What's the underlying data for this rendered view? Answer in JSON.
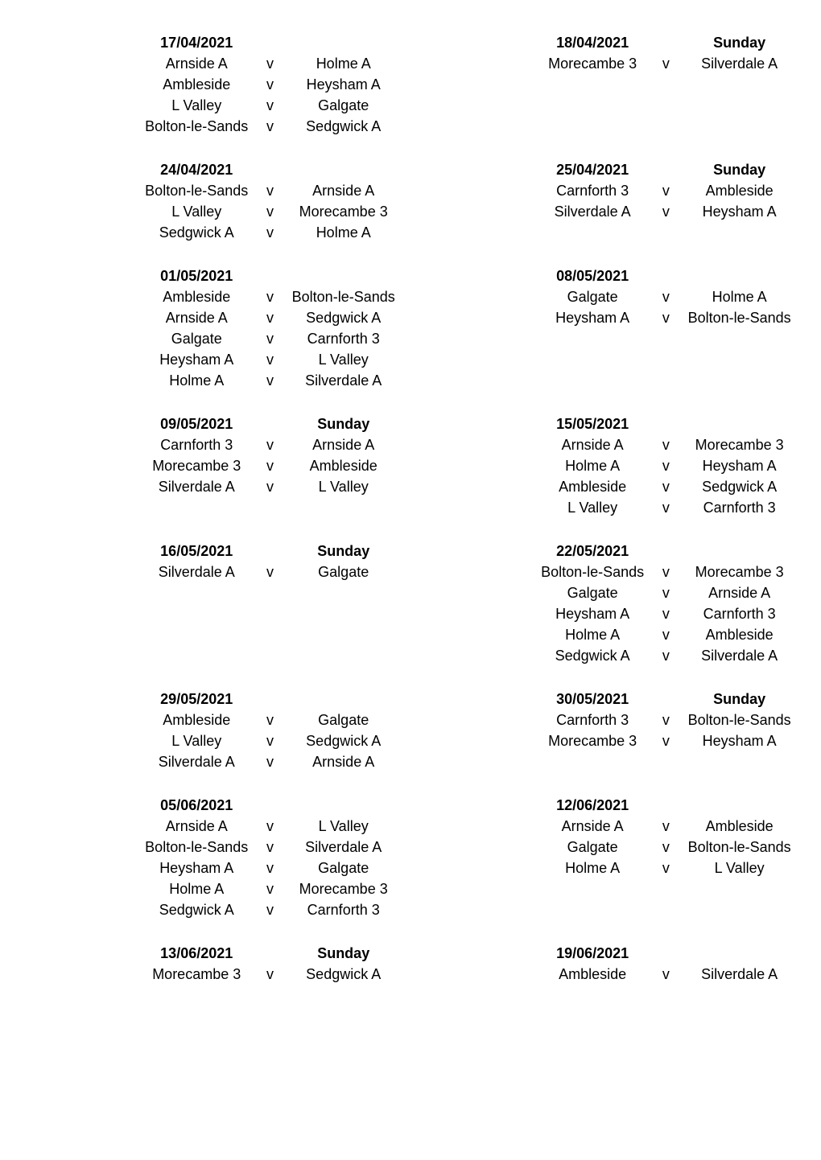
{
  "blocks": [
    {
      "left": {
        "date": "17/04/2021",
        "fixtures": [
          {
            "home": "Arnside A",
            "away": "Holme A"
          },
          {
            "home": "Ambleside",
            "away": "Heysham A"
          },
          {
            "home": "L Valley",
            "away": "Galgate"
          },
          {
            "home": "Bolton-le-Sands",
            "away": "Sedgwick A"
          }
        ]
      },
      "right": {
        "date": "18/04/2021",
        "rightHeader": "Sunday",
        "fixtures": [
          {
            "home": "Morecambe 3",
            "away": "Silverdale A"
          }
        ]
      }
    },
    {
      "left": {
        "date": "24/04/2021",
        "fixtures": [
          {
            "home": "Bolton-le-Sands",
            "away": "Arnside A"
          },
          {
            "home": "L Valley",
            "away": "Morecambe 3"
          },
          {
            "home": "Sedgwick A",
            "away": "Holme A"
          }
        ]
      },
      "right": {
        "date": "25/04/2021",
        "rightHeader": "Sunday",
        "fixtures": [
          {
            "home": "Carnforth 3",
            "away": "Ambleside"
          },
          {
            "home": "Silverdale A",
            "away": "Heysham A"
          }
        ]
      }
    },
    {
      "left": {
        "date": "01/05/2021",
        "fixtures": [
          {
            "home": "Ambleside",
            "away": "Bolton-le-Sands"
          },
          {
            "home": "Arnside A",
            "away": "Sedgwick A"
          },
          {
            "home": "Galgate",
            "away": "Carnforth 3"
          },
          {
            "home": "Heysham A",
            "away": "L Valley"
          },
          {
            "home": "Holme A",
            "away": "Silverdale A"
          }
        ]
      },
      "right": {
        "date": "08/05/2021",
        "fixtures": [
          {
            "home": "Galgate",
            "away": "Holme A"
          },
          {
            "home": "Heysham A",
            "away": "Bolton-le-Sands"
          }
        ]
      }
    },
    {
      "left": {
        "date": "09/05/2021",
        "awayHeader": "Sunday",
        "fixtures": [
          {
            "home": "Carnforth 3",
            "away": "Arnside A"
          },
          {
            "home": "Morecambe 3",
            "away": "Ambleside"
          },
          {
            "home": "Silverdale A",
            "away": "L Valley"
          }
        ]
      },
      "right": {
        "date": "15/05/2021",
        "fixtures": [
          {
            "home": "Arnside A",
            "away": "Morecambe 3"
          },
          {
            "home": "Holme A",
            "away": "Heysham A"
          },
          {
            "home": "Ambleside",
            "away": "Sedgwick A"
          },
          {
            "home": "L Valley",
            "away": "Carnforth 3"
          }
        ]
      }
    },
    {
      "left": {
        "date": "16/05/2021",
        "awayHeader": "Sunday",
        "fixtures": [
          {
            "home": "Silverdale A",
            "away": "Galgate"
          }
        ]
      },
      "right": {
        "date": "22/05/2021",
        "fixtures": [
          {
            "home": "Bolton-le-Sands",
            "away": "Morecambe 3"
          },
          {
            "home": "Galgate",
            "away": "Arnside A"
          },
          {
            "home": "Heysham A",
            "away": "Carnforth 3"
          },
          {
            "home": "Holme A",
            "away": "Ambleside"
          },
          {
            "home": "Sedgwick A",
            "away": "Silverdale A"
          }
        ]
      }
    },
    {
      "left": {
        "date": "29/05/2021",
        "fixtures": [
          {
            "home": "Ambleside",
            "away": "Galgate"
          },
          {
            "home": "L Valley",
            "away": "Sedgwick A"
          },
          {
            "home": "Silverdale A",
            "away": "Arnside A"
          }
        ]
      },
      "right": {
        "date": "30/05/2021",
        "rightHeader": "Sunday",
        "fixtures": [
          {
            "home": "Carnforth 3",
            "away": "Bolton-le-Sands"
          },
          {
            "home": "Morecambe 3",
            "away": "Heysham A"
          }
        ]
      }
    },
    {
      "left": {
        "date": "05/06/2021",
        "fixtures": [
          {
            "home": "Arnside A",
            "away": "L Valley"
          },
          {
            "home": "Bolton-le-Sands",
            "away": "Silverdale A"
          },
          {
            "home": "Heysham A",
            "away": "Galgate"
          },
          {
            "home": "Holme A",
            "away": "Morecambe 3"
          },
          {
            "home": "Sedgwick A",
            "away": "Carnforth 3"
          }
        ]
      },
      "right": {
        "date": "12/06/2021",
        "fixtures": [
          {
            "home": "Arnside A",
            "away": "Ambleside"
          },
          {
            "home": "Galgate",
            "away": "Bolton-le-Sands"
          },
          {
            "home": "Holme A",
            "away": "L Valley"
          }
        ]
      }
    },
    {
      "left": {
        "date": "13/06/2021",
        "awayHeader": "Sunday",
        "fixtures": [
          {
            "home": "Morecambe 3",
            "away": "Sedgwick A"
          }
        ]
      },
      "right": {
        "date": "19/06/2021",
        "fixtures": [
          {
            "home": "Ambleside",
            "away": "Silverdale A"
          }
        ]
      }
    }
  ],
  "vs_label": "v"
}
